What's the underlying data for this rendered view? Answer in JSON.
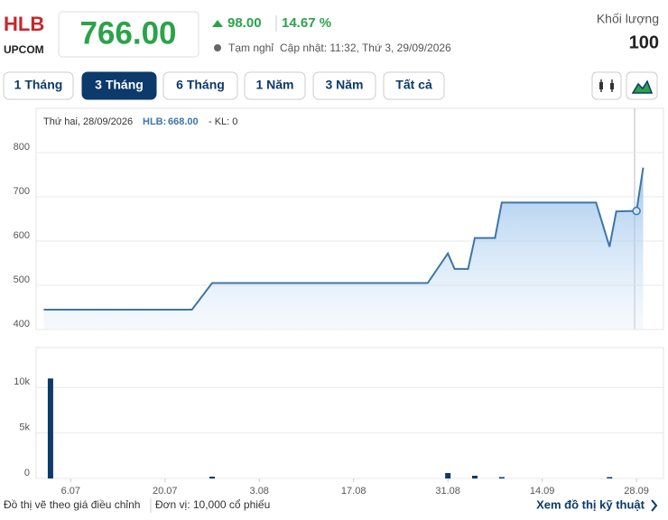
{
  "header": {
    "symbol": "HLB",
    "exchange": "UPCOM",
    "price": "766.00",
    "change": "98.00",
    "change_pct": "14.67 %",
    "status": "Tạm nghỉ",
    "updated": "Cập nhật: 11:32, Thứ 3, 29/09/2026",
    "volume_label": "Khối lượng",
    "volume": "100"
  },
  "buttons": [
    "1 Tháng",
    "3 Tháng",
    "6 Tháng",
    "1 Năm",
    "3 Năm",
    "Tất cả"
  ],
  "tooltip": {
    "date": "Thứ hai, 28/09/2026",
    "symbol": "HLB:",
    "price": "668.00",
    "volume": "- KL: 0"
  },
  "chart_data": [
    {
      "type": "line",
      "color": "#3d76a8",
      "x": [
        "2026-07-02",
        "2026-07-24",
        "2026-07-27",
        "2026-08-28",
        "2026-08-31",
        "2026-09-01",
        "2026-09-03",
        "2026-09-04",
        "2026-09-07",
        "2026-09-08",
        "2026-09-22",
        "2026-09-24",
        "2026-09-25",
        "2026-09-28",
        "2026-09-29"
      ],
      "values": [
        445,
        445,
        505,
        505,
        572,
        537,
        537,
        607,
        607,
        687,
        687,
        587,
        667,
        668,
        766
      ],
      "xlim": [
        "2026-07-01",
        "2026-09-30"
      ],
      "ylim": [
        400,
        900
      ],
      "yticks": [
        400,
        500,
        600,
        700,
        800
      ],
      "grid": true
    },
    {
      "type": "bar",
      "color": "#0b3a6b",
      "x": [
        "2026-07-03",
        "2026-07-27",
        "2026-08-31",
        "2026-09-04",
        "2026-09-08",
        "2026-09-24"
      ],
      "values": [
        11000,
        200,
        600,
        300,
        150,
        150
      ],
      "xlim": [
        "2026-07-01",
        "2026-09-30"
      ],
      "xticks": [
        {
          "value": "2026-07-06",
          "label": "6.07"
        },
        {
          "value": "2026-07-20",
          "label": "20.07"
        },
        {
          "value": "2026-08-03",
          "label": "3.08"
        },
        {
          "value": "2026-08-17",
          "label": "17.08"
        },
        {
          "value": "2026-08-31",
          "label": "31.08"
        },
        {
          "value": "2026-09-14",
          "label": "14.09"
        },
        {
          "value": "2026-09-28",
          "label": "28.09"
        }
      ],
      "ylim": [
        0,
        14400
      ],
      "yticks": [
        0,
        {
          "value": 5000,
          "label": "5k"
        },
        {
          "value": 10000,
          "label": "10k"
        }
      ],
      "grid": true
    }
  ],
  "footer": {
    "note": "Đồ thị vẽ theo giá điều chỉnh",
    "unit": "Đơn vị: 10,000 cổ phiếu",
    "link": "Xem đồ thị kỹ thuật"
  }
}
